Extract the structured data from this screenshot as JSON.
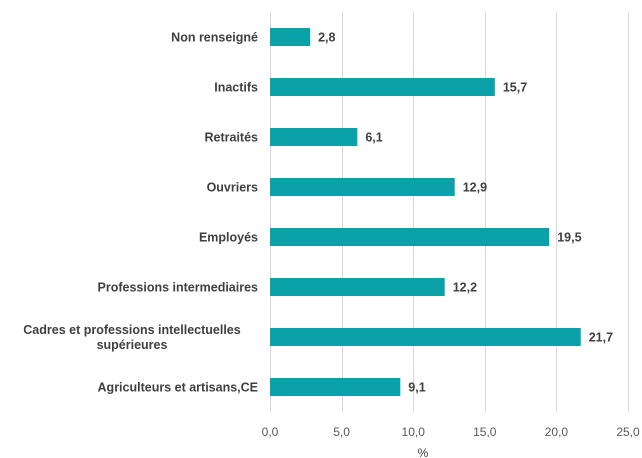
{
  "chart_data": {
    "type": "bar",
    "orientation": "horizontal",
    "categories": [
      "Non renseigné",
      "Inactifs",
      "Retraités",
      "Ouvriers",
      "Employés",
      "Professions intermediaires",
      "Cadres et professions intellectuelles supérieures",
      "Agriculteurs et artisans,CE"
    ],
    "category_lines": [
      [
        "Non renseigné"
      ],
      [
        "Inactifs"
      ],
      [
        "Retraités"
      ],
      [
        "Ouvriers"
      ],
      [
        "Employés"
      ],
      [
        "Professions intermediaires"
      ],
      [
        "Cadres et professions intellectuelles",
        "supérieures"
      ],
      [
        "Agriculteurs et artisans,CE"
      ]
    ],
    "values": [
      2.8,
      15.7,
      6.1,
      12.9,
      19.5,
      12.2,
      21.7,
      9.1
    ],
    "value_labels": [
      "2,8",
      "15,7",
      "6,1",
      "12,9",
      "19,5",
      "12,2",
      "21,7",
      "9,1"
    ],
    "x_ticks": [
      0,
      5,
      10,
      15,
      20,
      25
    ],
    "x_tick_labels": [
      "0,0",
      "5,0",
      "10,0",
      "15,0",
      "20,0",
      "25,0"
    ],
    "xlim": [
      0,
      25
    ],
    "xlabel": "%",
    "title": "",
    "ylabel": "",
    "grid": "vertical",
    "legend": "none",
    "bar_color": "#0aa1a9"
  }
}
